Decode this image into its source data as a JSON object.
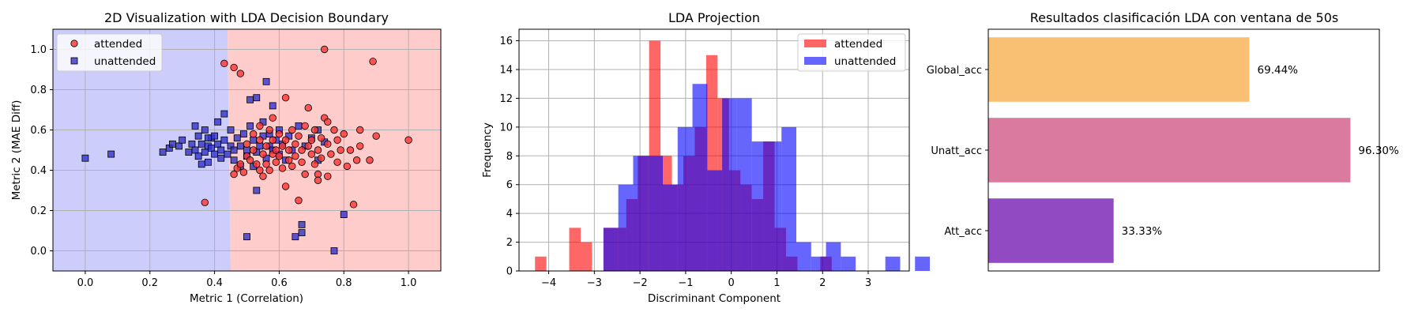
{
  "chart_data": [
    {
      "type": "scatter",
      "title": "2D Visualization with LDA Decision Boundary",
      "xlabel": "Metric 1 (Correlation)",
      "ylabel": "Metric 2 (MAE Diff)",
      "xlim": [
        -0.1,
        1.1
      ],
      "ylim": [
        -0.1,
        1.1
      ],
      "xticks": [
        "0.0",
        "0.2",
        "0.4",
        "0.6",
        "0.8",
        "1.0"
      ],
      "yticks": [
        "0.0",
        "0.2",
        "0.4",
        "0.6",
        "0.8",
        "1.0"
      ],
      "grid": true,
      "legend_position": "upper-left",
      "decision_boundary": {
        "top_x": 0.44,
        "bottom_x": 0.45
      },
      "regions": {
        "left_color": "#cccdfb",
        "right_color": "#ffcccc"
      },
      "series": [
        {
          "name": "unattended",
          "marker": "square",
          "color": "#3333cc",
          "points": [
            [
              0.0,
              0.46
            ],
            [
              0.08,
              0.48
            ],
            [
              0.24,
              0.49
            ],
            [
              0.26,
              0.51
            ],
            [
              0.27,
              0.53
            ],
            [
              0.29,
              0.52
            ],
            [
              0.3,
              0.55
            ],
            [
              0.32,
              0.49
            ],
            [
              0.33,
              0.53
            ],
            [
              0.34,
              0.5
            ],
            [
              0.34,
              0.62
            ],
            [
              0.35,
              0.47
            ],
            [
              0.35,
              0.57
            ],
            [
              0.36,
              0.43
            ],
            [
              0.36,
              0.53
            ],
            [
              0.37,
              0.49
            ],
            [
              0.37,
              0.6
            ],
            [
              0.38,
              0.52
            ],
            [
              0.38,
              0.44
            ],
            [
              0.39,
              0.56
            ],
            [
              0.39,
              0.51
            ],
            [
              0.4,
              0.48
            ],
            [
              0.4,
              0.57
            ],
            [
              0.41,
              0.53
            ],
            [
              0.41,
              0.64
            ],
            [
              0.42,
              0.5
            ],
            [
              0.42,
              0.46
            ],
            [
              0.43,
              0.55
            ],
            [
              0.43,
              0.68
            ],
            [
              0.44,
              0.48
            ],
            [
              0.45,
              0.52
            ],
            [
              0.45,
              0.6
            ],
            [
              0.46,
              0.5
            ],
            [
              0.46,
              0.45
            ],
            [
              0.47,
              0.56
            ],
            [
              0.48,
              0.52
            ],
            [
              0.48,
              0.42
            ],
            [
              0.49,
              0.58
            ],
            [
              0.5,
              0.5
            ],
            [
              0.5,
              0.47
            ],
            [
              0.51,
              0.62
            ],
            [
              0.51,
              0.75
            ],
            [
              0.52,
              0.55
            ],
            [
              0.52,
              0.42
            ],
            [
              0.53,
              0.49
            ],
            [
              0.53,
              0.3
            ],
            [
              0.54,
              0.52
            ],
            [
              0.55,
              0.57
            ],
            [
              0.55,
              0.64
            ],
            [
              0.56,
              0.46
            ],
            [
              0.57,
              0.52
            ],
            [
              0.57,
              0.58
            ],
            [
              0.58,
              0.5
            ],
            [
              0.58,
              0.72
            ],
            [
              0.59,
              0.55
            ],
            [
              0.6,
              0.48
            ],
            [
              0.6,
              0.6
            ],
            [
              0.61,
              0.53
            ],
            [
              0.62,
              0.45
            ],
            [
              0.63,
              0.57
            ],
            [
              0.64,
              0.5
            ],
            [
              0.65,
              0.07
            ],
            [
              0.66,
              0.62
            ],
            [
              0.67,
              0.13
            ],
            [
              0.67,
              0.09
            ],
            [
              0.68,
              0.52
            ],
            [
              0.7,
              0.56
            ],
            [
              0.72,
              0.45
            ],
            [
              0.72,
              0.6
            ],
            [
              0.74,
              0.54
            ],
            [
              0.77,
              0.0
            ],
            [
              0.8,
              0.18
            ],
            [
              0.5,
              0.07
            ],
            [
              0.56,
              0.84
            ],
            [
              0.53,
              0.76
            ],
            [
              0.38,
              0.56
            ]
          ]
        },
        {
          "name": "attended",
          "marker": "circle",
          "color": "#ff3333",
          "points": [
            [
              0.37,
              0.24
            ],
            [
              0.43,
              0.93
            ],
            [
              0.46,
              0.91
            ],
            [
              0.48,
              0.88
            ],
            [
              0.46,
              0.38
            ],
            [
              0.47,
              0.41
            ],
            [
              0.48,
              0.43
            ],
            [
              0.49,
              0.39
            ],
            [
              0.5,
              0.47
            ],
            [
              0.5,
              0.53
            ],
            [
              0.51,
              0.45
            ],
            [
              0.52,
              0.5
            ],
            [
              0.52,
              0.58
            ],
            [
              0.53,
              0.43
            ],
            [
              0.54,
              0.4
            ],
            [
              0.54,
              0.55
            ],
            [
              0.55,
              0.48
            ],
            [
              0.55,
              0.37
            ],
            [
              0.56,
              0.52
            ],
            [
              0.56,
              0.43
            ],
            [
              0.57,
              0.6
            ],
            [
              0.57,
              0.4
            ],
            [
              0.58,
              0.48
            ],
            [
              0.58,
              0.55
            ],
            [
              0.59,
              0.5
            ],
            [
              0.59,
              0.44
            ],
            [
              0.6,
              0.58
            ],
            [
              0.6,
              0.47
            ],
            [
              0.61,
              0.52
            ],
            [
              0.61,
              0.41
            ],
            [
              0.62,
              0.76
            ],
            [
              0.62,
              0.55
            ],
            [
              0.63,
              0.45
            ],
            [
              0.63,
              0.5
            ],
            [
              0.64,
              0.6
            ],
            [
              0.64,
              0.42
            ],
            [
              0.65,
              0.53
            ],
            [
              0.65,
              0.47
            ],
            [
              0.66,
              0.25
            ],
            [
              0.66,
              0.57
            ],
            [
              0.67,
              0.5
            ],
            [
              0.67,
              0.44
            ],
            [
              0.68,
              0.62
            ],
            [
              0.68,
              0.38
            ],
            [
              0.69,
              0.52
            ],
            [
              0.69,
              0.71
            ],
            [
              0.7,
              0.48
            ],
            [
              0.7,
              0.55
            ],
            [
              0.71,
              0.43
            ],
            [
              0.71,
              0.6
            ],
            [
              0.72,
              0.5
            ],
            [
              0.72,
              0.38
            ],
            [
              0.73,
              0.56
            ],
            [
              0.73,
              0.46
            ],
            [
              0.74,
              0.66
            ],
            [
              0.74,
              1.0
            ],
            [
              0.75,
              0.53
            ],
            [
              0.75,
              0.37
            ],
            [
              0.76,
              0.48
            ],
            [
              0.77,
              0.6
            ],
            [
              0.78,
              0.44
            ],
            [
              0.78,
              0.55
            ],
            [
              0.79,
              0.5
            ],
            [
              0.8,
              0.58
            ],
            [
              0.81,
              0.42
            ],
            [
              0.82,
              0.5
            ],
            [
              0.83,
              0.23
            ],
            [
              0.84,
              0.45
            ],
            [
              0.85,
              0.6
            ],
            [
              0.85,
              0.52
            ],
            [
              0.88,
              0.45
            ],
            [
              0.89,
              0.94
            ],
            [
              0.9,
              0.57
            ],
            [
              1.0,
              0.55
            ],
            [
              0.72,
              0.35
            ],
            [
              0.58,
              0.66
            ],
            [
              0.62,
              0.32
            ],
            [
              0.54,
              0.62
            ],
            [
              0.75,
              0.64
            ]
          ]
        }
      ]
    },
    {
      "type": "histogram",
      "title": "LDA Projection",
      "xlabel": "Discriminant Component",
      "ylabel": "Frequency",
      "xlim": [
        -4.65,
        3.9
      ],
      "ylim": [
        0,
        16.8
      ],
      "xticks": [
        "−4",
        "−3",
        "−2",
        "−1",
        "0",
        "1",
        "2",
        "3"
      ],
      "yticks": [
        "0",
        "2",
        "4",
        "6",
        "8",
        "10",
        "12",
        "14",
        "16"
      ],
      "grid": true,
      "legend_position": "upper-right",
      "series": [
        {
          "name": "attended",
          "color": "#ff0000",
          "opacity": 0.6,
          "bin_left": -4.3,
          "bin_width": 0.25,
          "counts": [
            1,
            0,
            0,
            3,
            2,
            0,
            3,
            3,
            5,
            8,
            16,
            8,
            6,
            8,
            10,
            15,
            12,
            7,
            6,
            5,
            9,
            3,
            1,
            0,
            0,
            1
          ]
        },
        {
          "name": "unattended",
          "color": "#0000ff",
          "opacity": 0.6,
          "bin_left": -2.8,
          "bin_width": 0.325,
          "counts": [
            3,
            6,
            8,
            8,
            6,
            10,
            13,
            7,
            12,
            12,
            9,
            9,
            10,
            2,
            1,
            2,
            1,
            0,
            0,
            1,
            0,
            1
          ]
        }
      ]
    },
    {
      "type": "bar",
      "orientation": "horizontal",
      "title": "Resultados clasificación LDA con ventana de 50s",
      "categories": [
        "Global_acc",
        "Unatt_acc",
        "Att_acc"
      ],
      "values": [
        69.44,
        96.3,
        33.33
      ],
      "value_labels": [
        "69.44%",
        "96.30%",
        "33.33%"
      ],
      "colors": [
        "#f9bf72",
        "#db7a9f",
        "#914ac1"
      ],
      "xlim": [
        0,
        100
      ],
      "grid": false
    }
  ]
}
